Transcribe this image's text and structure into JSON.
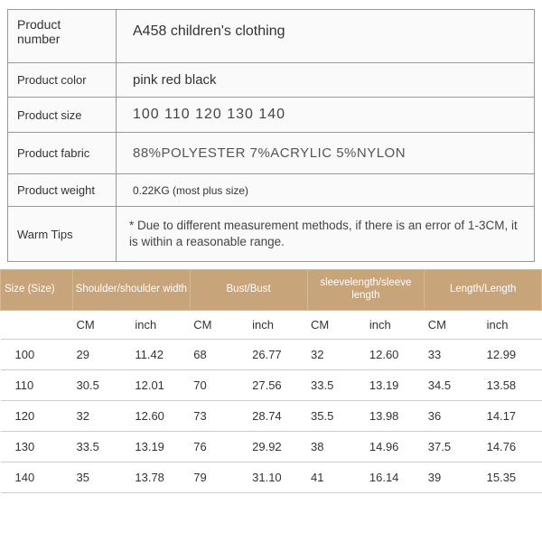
{
  "info": {
    "rows": [
      {
        "key": "Product number",
        "value": "A458 children's clothing"
      },
      {
        "key": "Product color",
        "value": "pink red black"
      },
      {
        "key": "Product size",
        "value": "100  110  120  130  140"
      },
      {
        "key": "Product fabric",
        "value": "88%POLYESTER  7%ACRYLIC  5%NYLON"
      },
      {
        "key": "Product weight",
        "value": "0.22KG (most plus size)"
      },
      {
        "key": "Warm Tips",
        "value": "* Due to different measurement methods, if there is an error of 1-3CM, it is within a reasonable range."
      }
    ]
  },
  "sizeTable": {
    "headers": {
      "size": "Size (Size)",
      "shoulder": "Shoulder/shoulder width",
      "bust": "Bust/Bust",
      "sleeve": "sleevelength/sleeve length",
      "length": "Length/Length"
    },
    "units": {
      "cm": "CM",
      "inch": "inch"
    },
    "rows": [
      {
        "size": "100",
        "shoulder_cm": "29",
        "shoulder_in": "11.42",
        "bust_cm": "68",
        "bust_in": "26.77",
        "sleeve_cm": "32",
        "sleeve_in": "12.60",
        "length_cm": "33",
        "length_in": "12.99"
      },
      {
        "size": "110",
        "shoulder_cm": "30.5",
        "shoulder_in": "12.01",
        "bust_cm": "70",
        "bust_in": "27.56",
        "sleeve_cm": "33.5",
        "sleeve_in": "13.19",
        "length_cm": "34.5",
        "length_in": "13.58"
      },
      {
        "size": "120",
        "shoulder_cm": "32",
        "shoulder_in": "12.60",
        "bust_cm": "73",
        "bust_in": "28.74",
        "sleeve_cm": "35.5",
        "sleeve_in": "13.98",
        "length_cm": "36",
        "length_in": "14.17"
      },
      {
        "size": "130",
        "shoulder_cm": "33.5",
        "shoulder_in": "13.19",
        "bust_cm": "76",
        "bust_in": "29.92",
        "sleeve_cm": "38",
        "sleeve_in": "14.96",
        "length_cm": "37.5",
        "length_in": "14.76"
      },
      {
        "size": "140",
        "shoulder_cm": "35",
        "shoulder_in": "13.78",
        "bust_cm": "79",
        "bust_in": "31.10",
        "sleeve_cm": "41",
        "sleeve_in": "16.14",
        "length_cm": "39",
        "length_in": "15.35"
      }
    ],
    "colors": {
      "header_bg": "#c8a47a",
      "header_text": "#ffffff",
      "border": "#cccccc",
      "cell_text": "#333333"
    }
  }
}
